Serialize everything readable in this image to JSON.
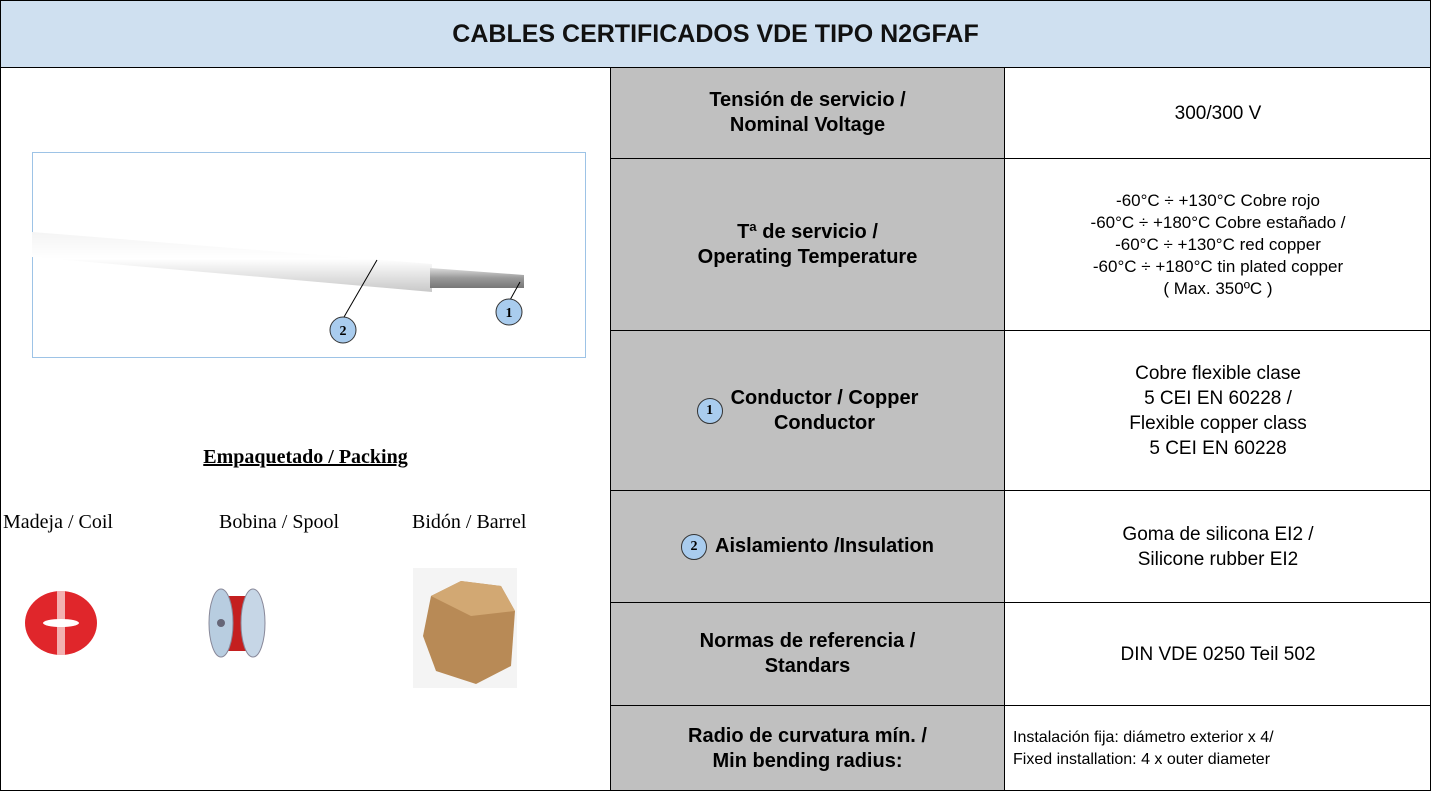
{
  "header": {
    "title": "CABLES CERTIFICADOS VDE TIPO N2GFAF"
  },
  "figure": {
    "callouts": [
      "2",
      "1"
    ]
  },
  "packing": {
    "title": "Empaquetado / Packing",
    "items": [
      "Madeja / Coil",
      "Bobina / Spool",
      "Bidón / Barrel"
    ]
  },
  "table": {
    "rows": [
      {
        "label": [
          "Tensión de servicio /",
          "Nominal Voltage"
        ],
        "value": [
          "300/300 V"
        ]
      },
      {
        "label": [
          "Tª de servicio /",
          "Operating Temperature"
        ],
        "value": [
          "-60°C ÷ +130°C Cobre rojo",
          "-60°C ÷ +180°C Cobre estañado /",
          "-60°C ÷ +130°C red copper",
          "-60°C ÷ +180°C tin plated copper",
          "( Max. 350ºC )"
        ]
      },
      {
        "badge": "1",
        "label": [
          "Conductor  / Copper",
          "Conductor"
        ],
        "value": [
          "Cobre flexible clase",
          "5 CEI EN 60228 /",
          "Flexible copper class",
          "5 CEI EN 60228"
        ]
      },
      {
        "badge": "2",
        "label": [
          "Aislamiento /Insulation"
        ],
        "value": [
          "Goma de silicona EI2 /",
          "Silicone rubber EI2"
        ]
      },
      {
        "label": [
          "Normas de referencia /",
          "Standars"
        ],
        "value": [
          "DIN VDE 0250 Teil 502"
        ]
      },
      {
        "label": [
          "Radio de curvatura mín. /",
          "Min bending radius:"
        ],
        "value": [
          "Instalación fija: diámetro exterior x 4/",
          "Fixed installation: 4 x outer diameter"
        ]
      }
    ]
  }
}
